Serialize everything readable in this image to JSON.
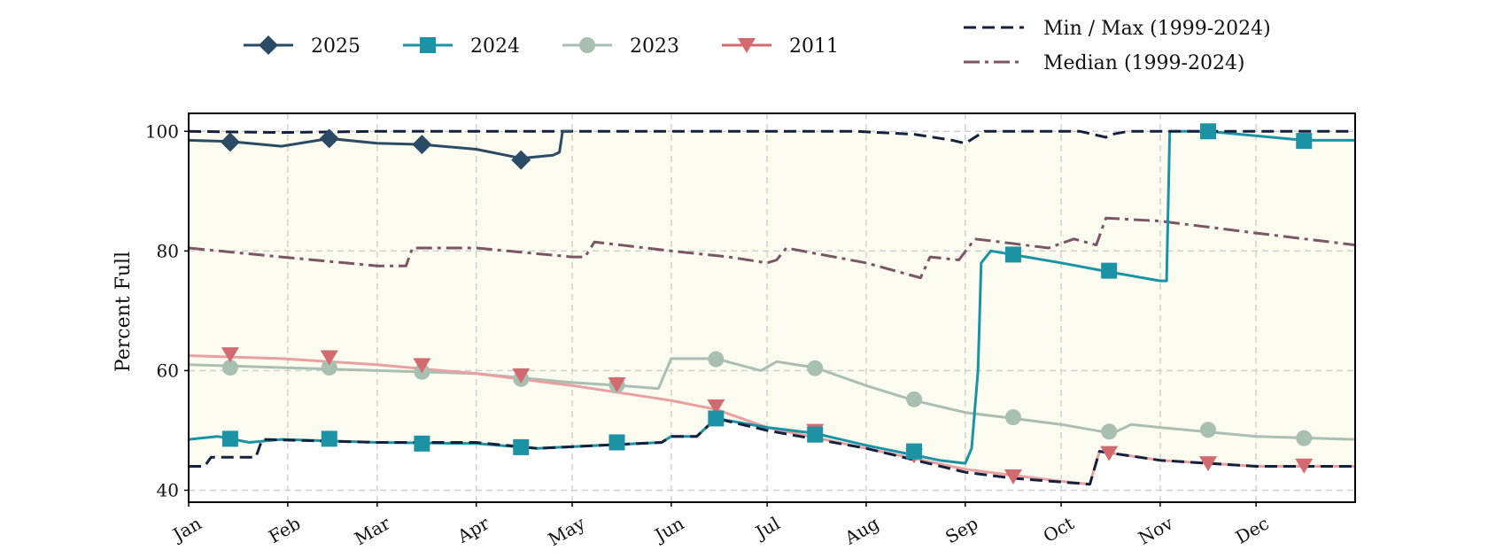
{
  "chart_data": {
    "type": "line",
    "title": "",
    "xlabel": "",
    "ylabel": "Percent Full",
    "ylim": [
      38,
      103
    ],
    "yticks": [
      40,
      60,
      80,
      100
    ],
    "x_unit": "day of year",
    "xlim": [
      1,
      366
    ],
    "month_ticks": [
      {
        "label": "Jan",
        "day": 1
      },
      {
        "label": "Feb",
        "day": 32
      },
      {
        "label": "Mar",
        "day": 60
      },
      {
        "label": "Apr",
        "day": 91
      },
      {
        "label": "May",
        "day": 121
      },
      {
        "label": "Jun",
        "day": 152
      },
      {
        "label": "Jul",
        "day": 182
      },
      {
        "label": "Aug",
        "day": 213
      },
      {
        "label": "Sep",
        "day": 244
      },
      {
        "label": "Oct",
        "day": 274
      },
      {
        "label": "Nov",
        "day": 305
      },
      {
        "label": "Dec",
        "day": 335
      }
    ],
    "grid": true,
    "legend_position": "top",
    "band": {
      "fill": "#fbfbf0",
      "between": [
        "Min",
        "Max"
      ]
    },
    "series": [
      {
        "name": "Max",
        "legend_label": "Min / Max (1999-2024)",
        "style": "dashed",
        "color": "#14213d",
        "points": [
          [
            1,
            100
          ],
          [
            30,
            99.8
          ],
          [
            60,
            100
          ],
          [
            121,
            100
          ],
          [
            210,
            100
          ],
          [
            228,
            99.5
          ],
          [
            240,
            98.5
          ],
          [
            244,
            98
          ],
          [
            250,
            100
          ],
          [
            280,
            100
          ],
          [
            288,
            99
          ],
          [
            290,
            99.5
          ],
          [
            295,
            100
          ],
          [
            366,
            100
          ]
        ]
      },
      {
        "name": "Min",
        "style": "dashed",
        "color": "#14213d",
        "points": [
          [
            1,
            44
          ],
          [
            6,
            44
          ],
          [
            8,
            45.5
          ],
          [
            22,
            45.5
          ],
          [
            24,
            48.5
          ],
          [
            60,
            48
          ],
          [
            91,
            48
          ],
          [
            110,
            47
          ],
          [
            130,
            47.5
          ],
          [
            149,
            48
          ],
          [
            152,
            49
          ],
          [
            160,
            49
          ],
          [
            166,
            52
          ],
          [
            182,
            50
          ],
          [
            213,
            47
          ],
          [
            244,
            43
          ],
          [
            259,
            42
          ],
          [
            283,
            41
          ],
          [
            286,
            46.5
          ],
          [
            305,
            45
          ],
          [
            335,
            44
          ],
          [
            366,
            44
          ]
        ]
      },
      {
        "name": "Median (1999-2024)",
        "style": "dashdot",
        "color": "#7a5563",
        "points": [
          [
            1,
            80.5
          ],
          [
            30,
            79
          ],
          [
            60,
            77.5
          ],
          [
            69,
            77.5
          ],
          [
            71,
            80.5
          ],
          [
            91,
            80.5
          ],
          [
            121,
            79
          ],
          [
            125,
            79
          ],
          [
            128,
            81.5
          ],
          [
            152,
            80
          ],
          [
            170,
            79
          ],
          [
            182,
            78
          ],
          [
            185,
            78.5
          ],
          [
            188,
            80.5
          ],
          [
            213,
            78
          ],
          [
            230,
            75.5
          ],
          [
            233,
            79
          ],
          [
            242,
            78.5
          ],
          [
            247,
            82
          ],
          [
            255,
            81.5
          ],
          [
            270,
            80.5
          ],
          [
            278,
            82
          ],
          [
            285,
            81
          ],
          [
            288,
            85.5
          ],
          [
            305,
            85
          ],
          [
            335,
            83
          ],
          [
            366,
            81
          ]
        ]
      },
      {
        "name": "2023",
        "style": "solid",
        "color": "#a8bfb2",
        "marker": "circle",
        "points": [
          [
            1,
            61
          ],
          [
            30,
            60.5
          ],
          [
            60,
            60
          ],
          [
            91,
            59.5
          ],
          [
            121,
            58
          ],
          [
            136,
            57.5
          ],
          [
            148,
            57
          ],
          [
            152,
            62
          ],
          [
            166,
            62
          ],
          [
            180,
            60
          ],
          [
            185,
            61.5
          ],
          [
            197,
            60.5
          ],
          [
            213,
            57.5
          ],
          [
            228,
            55
          ],
          [
            244,
            53
          ],
          [
            259,
            52
          ],
          [
            274,
            51
          ],
          [
            290,
            49.5
          ],
          [
            296,
            51
          ],
          [
            305,
            50.5
          ],
          [
            335,
            49
          ],
          [
            366,
            48.5
          ]
        ],
        "markers": [
          [
            14,
            60.5
          ],
          [
            45,
            60.5
          ],
          [
            74,
            59.8
          ],
          [
            105,
            58.6
          ],
          [
            135,
            57.6
          ],
          [
            166,
            61.9
          ],
          [
            197,
            60.4
          ],
          [
            228,
            55.2
          ],
          [
            259,
            52.2
          ],
          [
            289,
            49.8
          ],
          [
            320,
            50.1
          ],
          [
            350,
            48.7
          ]
        ]
      },
      {
        "name": "2011",
        "style": "solid",
        "color": "#e8a0a0",
        "marker_color": "#d26a70",
        "marker": "triangle-down",
        "points": [
          [
            1,
            62.5
          ],
          [
            30,
            62
          ],
          [
            60,
            61
          ],
          [
            91,
            59.5
          ],
          [
            121,
            57.5
          ],
          [
            152,
            55
          ],
          [
            166,
            53.5
          ],
          [
            182,
            50.5
          ],
          [
            213,
            47
          ],
          [
            244,
            43.5
          ],
          [
            259,
            42.5
          ],
          [
            274,
            41.5
          ],
          [
            283,
            41
          ],
          [
            286,
            46.5
          ],
          [
            305,
            45
          ],
          [
            335,
            44
          ],
          [
            366,
            44
          ]
        ],
        "markers": [
          [
            14,
            62.7
          ],
          [
            45,
            62.2
          ],
          [
            74,
            60.9
          ],
          [
            105,
            59.2
          ],
          [
            135,
            57.7
          ],
          [
            166,
            54.0
          ],
          [
            197,
            49.9
          ],
          [
            228,
            45.8
          ],
          [
            259,
            42.3
          ],
          [
            289,
            46.2
          ],
          [
            320,
            44.5
          ],
          [
            350,
            44.1
          ]
        ]
      },
      {
        "name": "2024",
        "style": "solid",
        "color": "#1b93a5",
        "marker": "square",
        "points": [
          [
            1,
            48.5
          ],
          [
            10,
            49
          ],
          [
            20,
            48
          ],
          [
            30,
            48.5
          ],
          [
            60,
            48
          ],
          [
            91,
            47.8
          ],
          [
            110,
            47
          ],
          [
            130,
            47.5
          ],
          [
            149,
            48
          ],
          [
            152,
            49
          ],
          [
            160,
            49
          ],
          [
            166,
            52
          ],
          [
            182,
            50.5
          ],
          [
            197,
            49.5
          ],
          [
            213,
            47.5
          ],
          [
            236,
            45
          ],
          [
            244,
            44.5
          ],
          [
            246,
            47
          ],
          [
            248,
            60
          ],
          [
            249,
            78
          ],
          [
            252,
            80
          ],
          [
            274,
            78
          ],
          [
            289,
            76.5
          ],
          [
            305,
            75
          ],
          [
            307,
            75
          ],
          [
            308,
            100
          ],
          [
            320,
            100
          ],
          [
            350,
            98.5
          ],
          [
            366,
            98.5
          ]
        ],
        "markers": [
          [
            14,
            48.6
          ],
          [
            45,
            48.6
          ],
          [
            74,
            47.8
          ],
          [
            105,
            47.2
          ],
          [
            135,
            48.0
          ],
          [
            166,
            52.0
          ],
          [
            197,
            49.3
          ],
          [
            228,
            46.5
          ],
          [
            259,
            79.4
          ],
          [
            289,
            76.7
          ],
          [
            320,
            100
          ],
          [
            350,
            98.4
          ]
        ]
      },
      {
        "name": "2025",
        "style": "solid",
        "color": "#2b4a63",
        "marker": "diamond",
        "points": [
          [
            1,
            98.5
          ],
          [
            14,
            98.3
          ],
          [
            30,
            97.5
          ],
          [
            45,
            98.8
          ],
          [
            60,
            98
          ],
          [
            74,
            97.8
          ],
          [
            91,
            97
          ],
          [
            105,
            95.5
          ],
          [
            115,
            96
          ],
          [
            117,
            96.5
          ],
          [
            118,
            100
          ],
          [
            121,
            100
          ]
        ],
        "markers": [
          [
            14,
            98.2
          ],
          [
            45,
            98.8
          ],
          [
            74,
            97.8
          ],
          [
            105,
            95.2
          ]
        ]
      }
    ]
  },
  "legend": {
    "items": [
      {
        "label": "2025",
        "color": "#2b4a63",
        "marker": "diamond",
        "style": "solid"
      },
      {
        "label": "2024",
        "color": "#1b93a5",
        "marker": "square",
        "style": "solid"
      },
      {
        "label": "2023",
        "color": "#a8bfb2",
        "marker": "circle",
        "style": "solid"
      },
      {
        "label": "2011",
        "color": "#d26a70",
        "marker": "triangle-down",
        "style": "solid"
      }
    ],
    "ref_items": [
      {
        "label": "Min / Max (1999-2024)",
        "color": "#14213d",
        "style": "dashed"
      },
      {
        "label": "Median (1999-2024)",
        "color": "#7a5563",
        "style": "dashdot"
      }
    ]
  }
}
